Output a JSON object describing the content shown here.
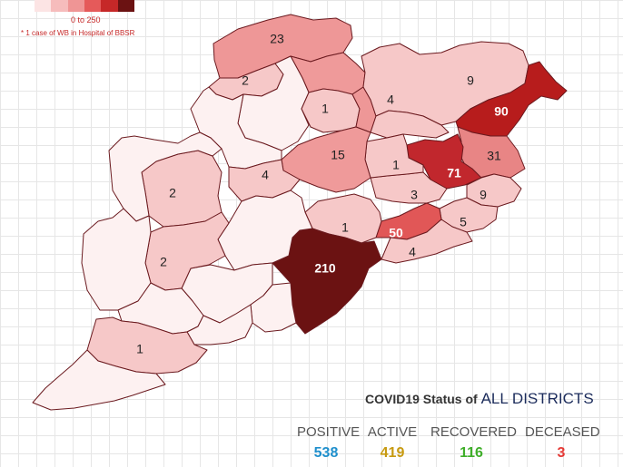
{
  "legend": {
    "colors": [
      "#fce4e4",
      "#f6bcbc",
      "#ef9595",
      "#e55a5a",
      "#c62828",
      "#6b1212"
    ],
    "range": "0 to 250",
    "note": "* 1 case of WB in Hospital of BBSR"
  },
  "districts": [
    {
      "id": "d-north-top",
      "label": "23",
      "fill": "#ee9797"
    },
    {
      "id": "d-north-mid",
      "label": "",
      "fill": "#ef9a9a"
    },
    {
      "id": "d-north-left",
      "label": "2",
      "fill": "#f6c8c8"
    },
    {
      "id": "d-kendujhar-w",
      "label": "",
      "fill": "#fdf1f1"
    },
    {
      "id": "d-kendujhar-e",
      "label": "1",
      "fill": "#f6c8c8"
    },
    {
      "id": "d-angul-n",
      "label": "",
      "fill": "#ee9797"
    },
    {
      "id": "d-mayurbhanj",
      "label": "9",
      "fill": "#f6c8c8"
    },
    {
      "id": "d-keonjhar",
      "label": "4",
      "fill": "#f6c8c8"
    },
    {
      "id": "d-balasore",
      "label": "90",
      "fill": "#b71c1c"
    },
    {
      "id": "d-bhadrak",
      "label": "31",
      "fill": "#e88585"
    },
    {
      "id": "d-jajpur",
      "label": "71",
      "fill": "#c1272d"
    },
    {
      "id": "d-kendrapara",
      "label": "9",
      "fill": "#f6c8c8"
    },
    {
      "id": "d-jagatsinghpur",
      "label": "5",
      "fill": "#f6c8c8"
    },
    {
      "id": "d-cuttack",
      "label": "3",
      "fill": "#f6c8c8"
    },
    {
      "id": "d-dhenkanal",
      "label": "1",
      "fill": "#f6c8c8"
    },
    {
      "id": "d-angul",
      "label": "15",
      "fill": "#ef9a9a"
    },
    {
      "id": "d-sambalpur-w",
      "label": "",
      "fill": "#fdf1f1"
    },
    {
      "id": "d-sambalpur-s",
      "label": "4",
      "fill": "#f6c8c8"
    },
    {
      "id": "d-khurda",
      "label": "50",
      "fill": "#e15757"
    },
    {
      "id": "d-puri",
      "label": "4",
      "fill": "#f6c8c8"
    },
    {
      "id": "d-nayagarh",
      "label": "1",
      "fill": "#f6c8c8"
    },
    {
      "id": "d-ganjam",
      "label": "210",
      "fill": "#6b1212"
    },
    {
      "id": "d-boudh",
      "label": "",
      "fill": "#fdf1f1"
    },
    {
      "id": "d-kandhamal",
      "label": "",
      "fill": "#fdf1f1"
    },
    {
      "id": "d-gajapati",
      "label": "",
      "fill": "#fdf1f1"
    },
    {
      "id": "d-balangir",
      "label": "2",
      "fill": "#f6c8c8"
    },
    {
      "id": "d-bargarh-w",
      "label": "",
      "fill": "#fdf1f1"
    },
    {
      "id": "d-kalahandi",
      "label": "2",
      "fill": "#f6c8c8"
    },
    {
      "id": "d-nuapada",
      "label": "",
      "fill": "#fdf1f1"
    },
    {
      "id": "d-rayagada",
      "label": "",
      "fill": "#fdf1f1"
    },
    {
      "id": "d-nabarangpur",
      "label": "",
      "fill": "#fdf1f1"
    },
    {
      "id": "d-koraput",
      "label": "1",
      "fill": "#f6c8c8"
    },
    {
      "id": "d-malkangiri",
      "label": "",
      "fill": "#fdf1f1"
    }
  ],
  "status": {
    "title_prefix": "COVID19 Status of",
    "title_highlight": "ALL DISTRICTS",
    "positive_label": "POSITIVE",
    "positive_value": "538",
    "positive_color": "#1f8fcc",
    "active_label": "ACTIVE",
    "active_value": "419",
    "active_color": "#c79a10",
    "recovered_label": "RECOVERED",
    "recovered_value": "116",
    "recovered_color": "#3fae2a",
    "deceased_label": "DECEASED",
    "deceased_value": "3",
    "deceased_color": "#e53935"
  }
}
